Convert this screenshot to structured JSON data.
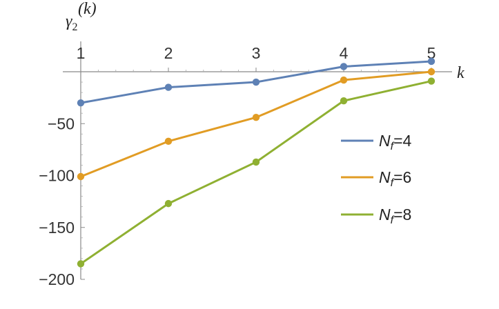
{
  "chart_data": {
    "type": "line",
    "x": [
      1,
      2,
      3,
      4,
      5
    ],
    "xlabel": "k",
    "ylabel": {
      "main": "γ",
      "sub": "2",
      "sup": "(k)"
    },
    "xlim": [
      1,
      5
    ],
    "ylim": [
      -200,
      10
    ],
    "x_ticks": [
      1,
      2,
      3,
      4,
      5
    ],
    "x_tick_labels": [
      "1",
      "2",
      "3",
      "4",
      "5"
    ],
    "y_ticks": [
      -50,
      -100,
      -150,
      -200
    ],
    "y_tick_labels": [
      "−50",
      "−100",
      "−150",
      "−200"
    ],
    "grid": false,
    "legend_position": "right",
    "series": [
      {
        "legend": {
          "var": "N",
          "sub": "f",
          "rest": "=4"
        },
        "color": "#5E81B5",
        "values": [
          -30,
          -15,
          -10,
          5,
          10
        ]
      },
      {
        "legend": {
          "var": "N",
          "sub": "f",
          "rest": "=6"
        },
        "color": "#E19C24",
        "values": [
          -101,
          -67,
          -44,
          -8,
          0
        ]
      },
      {
        "legend": {
          "var": "N",
          "sub": "f",
          "rest": "=8"
        },
        "color": "#8FB032",
        "values": [
          -185,
          -127,
          -87,
          -28,
          -9
        ]
      }
    ]
  }
}
